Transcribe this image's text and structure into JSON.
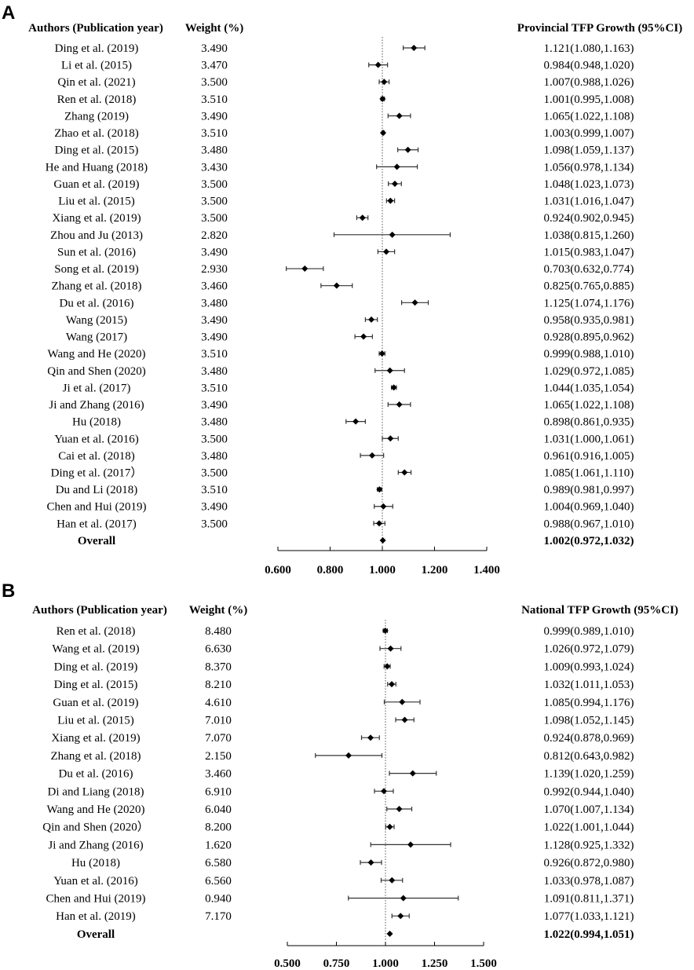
{
  "chart_data": [
    {
      "type": "forest",
      "panel_label": "A",
      "headers": {
        "study": "Authors (Publication year)",
        "weight": "Weight (%)",
        "effect": "Provincial TFP Growth (95%CI)"
      },
      "reference_line": 1.0,
      "xlim": [
        0.6,
        1.4
      ],
      "xticks": [
        0.6,
        0.8,
        1.0,
        1.2,
        1.4
      ],
      "xtick_labels": [
        "0.600",
        "0.800",
        "1.000",
        "1.200",
        "1.400"
      ],
      "studies": [
        {
          "name": "Ding et al. (2019)",
          "weight": "3.490",
          "est": 1.121,
          "lo": 1.08,
          "hi": 1.163,
          "ci_text": "1.121(1.080,1.163)"
        },
        {
          "name": "Li et al. (2015)",
          "weight": "3.470",
          "est": 0.984,
          "lo": 0.948,
          "hi": 1.02,
          "ci_text": "0.984(0.948,1.020)"
        },
        {
          "name": "Qin et al. (2021)",
          "weight": "3.500",
          "est": 1.007,
          "lo": 0.988,
          "hi": 1.026,
          "ci_text": "1.007(0.988,1.026)"
        },
        {
          "name": "Ren et al. (2018)",
          "weight": "3.510",
          "est": 1.001,
          "lo": 0.995,
          "hi": 1.008,
          "ci_text": "1.001(0.995,1.008)"
        },
        {
          "name": "Zhang (2019)",
          "weight": "3.490",
          "est": 1.065,
          "lo": 1.022,
          "hi": 1.108,
          "ci_text": "1.065(1.022,1.108)"
        },
        {
          "name": "Zhao et al. (2018)",
          "weight": "3.510",
          "est": 1.003,
          "lo": 0.999,
          "hi": 1.007,
          "ci_text": "1.003(0.999,1.007)"
        },
        {
          "name": "Ding et al. (2015)",
          "weight": "3.480",
          "est": 1.098,
          "lo": 1.059,
          "hi": 1.137,
          "ci_text": "1.098(1.059,1.137)"
        },
        {
          "name": "He and Huang (2018)",
          "weight": "3.430",
          "est": 1.056,
          "lo": 0.978,
          "hi": 1.134,
          "ci_text": "1.056(0.978,1.134)"
        },
        {
          "name": "Guan et al. (2019)",
          "weight": "3.500",
          "est": 1.048,
          "lo": 1.023,
          "hi": 1.073,
          "ci_text": "1.048(1.023,1.073)"
        },
        {
          "name": "Liu et al. (2015)",
          "weight": "3.500",
          "est": 1.031,
          "lo": 1.016,
          "hi": 1.047,
          "ci_text": "1.031(1.016,1.047)"
        },
        {
          "name": "Xiang et al. (2019)",
          "weight": "3.500",
          "est": 0.924,
          "lo": 0.902,
          "hi": 0.945,
          "ci_text": "0.924(0.902,0.945)"
        },
        {
          "name": "Zhou and Ju (2013)",
          "weight": "2.820",
          "est": 1.038,
          "lo": 0.815,
          "hi": 1.26,
          "ci_text": "1.038(0.815,1.260)"
        },
        {
          "name": "Sun et al. (2016)",
          "weight": "3.490",
          "est": 1.015,
          "lo": 0.983,
          "hi": 1.047,
          "ci_text": "1.015(0.983,1.047)"
        },
        {
          "name": "Song et al. (2019)",
          "weight": "2.930",
          "est": 0.703,
          "lo": 0.632,
          "hi": 0.774,
          "ci_text": "0.703(0.632,0.774)"
        },
        {
          "name": "Zhang et al. (2018)",
          "weight": "3.460",
          "est": 0.825,
          "lo": 0.765,
          "hi": 0.885,
          "ci_text": "0.825(0.765,0.885)"
        },
        {
          "name": "Du et al. (2016)",
          "weight": "3.480",
          "est": 1.125,
          "lo": 1.074,
          "hi": 1.176,
          "ci_text": "1.125(1.074,1.176)"
        },
        {
          "name": "Wang (2015)",
          "weight": "3.490",
          "est": 0.958,
          "lo": 0.935,
          "hi": 0.981,
          "ci_text": "0.958(0.935,0.981)"
        },
        {
          "name": "Wang (2017)",
          "weight": "3.490",
          "est": 0.928,
          "lo": 0.895,
          "hi": 0.962,
          "ci_text": "0.928(0.895,0.962)"
        },
        {
          "name": "Wang and He (2020)",
          "weight": "3.510",
          "est": 0.999,
          "lo": 0.988,
          "hi": 1.01,
          "ci_text": "0.999(0.988,1.010)"
        },
        {
          "name": "Qin and Shen (2020)",
          "weight": "3.480",
          "est": 1.029,
          "lo": 0.972,
          "hi": 1.085,
          "ci_text": "1.029(0.972,1.085)"
        },
        {
          "name": "Ji et al. (2017)",
          "weight": "3.510",
          "est": 1.044,
          "lo": 1.035,
          "hi": 1.054,
          "ci_text": "1.044(1.035,1.054)"
        },
        {
          "name": "Ji and Zhang (2016)",
          "weight": "3.490",
          "est": 1.065,
          "lo": 1.022,
          "hi": 1.108,
          "ci_text": "1.065(1.022,1.108)"
        },
        {
          "name": "Hu (2018)",
          "weight": "3.480",
          "est": 0.898,
          "lo": 0.861,
          "hi": 0.935,
          "ci_text": "0.898(0.861,0.935)"
        },
        {
          "name": "Yuan et al. (2016)",
          "weight": "3.500",
          "est": 1.031,
          "lo": 1.0,
          "hi": 1.061,
          "ci_text": "1.031(1.000,1.061)"
        },
        {
          "name": "Cai et al. (2018)",
          "weight": "3.480",
          "est": 0.961,
          "lo": 0.916,
          "hi": 1.005,
          "ci_text": "0.961(0.916,1.005)"
        },
        {
          "name": "Ding et al. (2017）",
          "weight": "3.500",
          "est": 1.085,
          "lo": 1.061,
          "hi": 1.11,
          "ci_text": "1.085(1.061,1.110)"
        },
        {
          "name": "Du and Li (2018)",
          "weight": "3.510",
          "est": 0.989,
          "lo": 0.981,
          "hi": 0.997,
          "ci_text": "0.989(0.981,0.997)"
        },
        {
          "name": "Chen and Hui (2019)",
          "weight": "3.490",
          "est": 1.004,
          "lo": 0.969,
          "hi": 1.04,
          "ci_text": "1.004(0.969,1.040)"
        },
        {
          "name": "Han et al. (2017)",
          "weight": "3.500",
          "est": 0.988,
          "lo": 0.967,
          "hi": 1.01,
          "ci_text": "0.988(0.967,1.010)"
        }
      ],
      "overall": {
        "name": "Overall",
        "est": 1.002,
        "lo": 0.972,
        "hi": 1.032,
        "ci_text": "1.002(0.972,1.032)"
      }
    },
    {
      "type": "forest",
      "panel_label": "B",
      "headers": {
        "study": "Authors (Publication year)",
        "weight": "Weight (%)",
        "effect": "National TFP Growth (95%CI)"
      },
      "reference_line": 1.0,
      "xlim": [
        0.5,
        1.5
      ],
      "xticks": [
        0.5,
        0.75,
        1.0,
        1.25,
        1.5
      ],
      "xtick_labels": [
        "0.500",
        "0.750",
        "1.000",
        "1.250",
        "1.500"
      ],
      "studies": [
        {
          "name": "Ren et al. (2018)",
          "weight": "8.480",
          "est": 0.999,
          "lo": 0.989,
          "hi": 1.01,
          "ci_text": "0.999(0.989,1.010)"
        },
        {
          "name": "Wang et al. (2019)",
          "weight": "6.630",
          "est": 1.026,
          "lo": 0.972,
          "hi": 1.079,
          "ci_text": "1.026(0.972,1.079)"
        },
        {
          "name": "Ding et al. (2019)",
          "weight": "8.370",
          "est": 1.009,
          "lo": 0.993,
          "hi": 1.024,
          "ci_text": "1.009(0.993,1.024)"
        },
        {
          "name": "Ding et al. (2015)",
          "weight": "8.210",
          "est": 1.032,
          "lo": 1.011,
          "hi": 1.053,
          "ci_text": "1.032(1.011,1.053)"
        },
        {
          "name": "Guan et al. (2019)",
          "weight": "4.610",
          "est": 1.085,
          "lo": 0.994,
          "hi": 1.176,
          "ci_text": "1.085(0.994,1.176)"
        },
        {
          "name": "Liu et al. (2015)",
          "weight": "7.010",
          "est": 1.098,
          "lo": 1.052,
          "hi": 1.145,
          "ci_text": "1.098(1.052,1.145)"
        },
        {
          "name": "Xiang et al. (2019)",
          "weight": "7.070",
          "est": 0.924,
          "lo": 0.878,
          "hi": 0.969,
          "ci_text": "0.924(0.878,0.969)"
        },
        {
          "name": "Zhang et al. (2018)",
          "weight": "2.150",
          "est": 0.812,
          "lo": 0.643,
          "hi": 0.982,
          "ci_text": "0.812(0.643,0.982)"
        },
        {
          "name": "Du et al. (2016)",
          "weight": "3.460",
          "est": 1.139,
          "lo": 1.02,
          "hi": 1.259,
          "ci_text": "1.139(1.020,1.259)"
        },
        {
          "name": "Di and Liang (2018)",
          "weight": "6.910",
          "est": 0.992,
          "lo": 0.944,
          "hi": 1.04,
          "ci_text": "0.992(0.944,1.040)"
        },
        {
          "name": "Wang and He (2020)",
          "weight": "6.040",
          "est": 1.07,
          "lo": 1.007,
          "hi": 1.134,
          "ci_text": "1.070(1.007,1.134)"
        },
        {
          "name": "Qin and Shen (2020）",
          "weight": "8.200",
          "est": 1.022,
          "lo": 1.001,
          "hi": 1.044,
          "ci_text": "1.022(1.001,1.044)"
        },
        {
          "name": "Ji and Zhang (2016)",
          "weight": "1.620",
          "est": 1.128,
          "lo": 0.925,
          "hi": 1.332,
          "ci_text": "1.128(0.925,1.332)"
        },
        {
          "name": "Hu (2018)",
          "weight": "6.580",
          "est": 0.926,
          "lo": 0.872,
          "hi": 0.98,
          "ci_text": "0.926(0.872,0.980)"
        },
        {
          "name": "Yuan et al. (2016)",
          "weight": "6.560",
          "est": 1.033,
          "lo": 0.978,
          "hi": 1.087,
          "ci_text": "1.033(0.978,1.087)"
        },
        {
          "name": "Chen and Hui (2019)",
          "weight": "0.940",
          "est": 1.091,
          "lo": 0.811,
          "hi": 1.371,
          "ci_text": "1.091(0.811,1.371)"
        },
        {
          "name": "Han et al. (2019)",
          "weight": "7.170",
          "est": 1.077,
          "lo": 1.033,
          "hi": 1.121,
          "ci_text": "1.077(1.033,1.121)"
        }
      ],
      "overall": {
        "name": "Overall",
        "est": 1.022,
        "lo": 0.994,
        "hi": 1.051,
        "ci_text": "1.022(0.994,1.051)"
      }
    }
  ]
}
